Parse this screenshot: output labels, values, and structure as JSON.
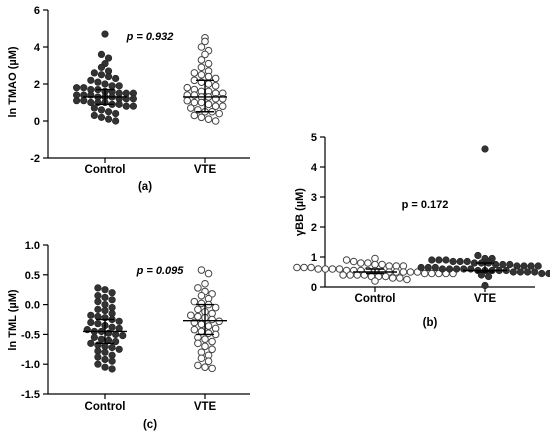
{
  "chart_data": [
    {
      "id": "a",
      "type": "scatter",
      "panel_label": "(a)",
      "ylabel": "ln TMAO (µM)",
      "annotation": "p = 0.932",
      "annotation_italic": true,
      "ylim": [
        -2,
        6
      ],
      "yticks": [
        -2,
        0,
        2,
        4,
        6
      ],
      "categories": [
        "Control",
        "VTE"
      ],
      "series": [
        {
          "category": "Control",
          "style": "filled",
          "median": 1.3,
          "iqr": [
            0.9,
            1.7
          ],
          "values": [
            4.7,
            3.6,
            3.4,
            3.1,
            2.9,
            2.7,
            2.6,
            2.5,
            2.4,
            2.3,
            2.2,
            2.1,
            2.0,
            1.9,
            1.9,
            1.8,
            1.8,
            1.7,
            1.7,
            1.6,
            1.6,
            1.5,
            1.5,
            1.5,
            1.4,
            1.4,
            1.4,
            1.3,
            1.3,
            1.3,
            1.2,
            1.2,
            1.2,
            1.1,
            1.1,
            1.0,
            1.0,
            1.0,
            0.9,
            0.9,
            0.8,
            0.8,
            0.7,
            0.6,
            0.5,
            0.4,
            0.3,
            0.2,
            0.1,
            0.0
          ]
        },
        {
          "category": "VTE",
          "style": "open",
          "median": 1.3,
          "iqr": [
            0.5,
            2.2
          ],
          "values": [
            4.5,
            4.3,
            4.0,
            3.8,
            3.6,
            3.3,
            3.1,
            2.9,
            2.7,
            2.6,
            2.5,
            2.4,
            2.3,
            2.2,
            2.1,
            2.0,
            1.9,
            1.8,
            1.7,
            1.6,
            1.6,
            1.5,
            1.5,
            1.4,
            1.4,
            1.3,
            1.3,
            1.2,
            1.2,
            1.1,
            1.0,
            1.0,
            0.9,
            0.8,
            0.8,
            0.7,
            0.6,
            0.5,
            0.5,
            0.4,
            0.3,
            0.2,
            0.1,
            0.0
          ]
        }
      ]
    },
    {
      "id": "b",
      "type": "scatter",
      "panel_label": "(b)",
      "ylabel": "γBB (µM)",
      "annotation": "p = 0.172",
      "annotation_italic": false,
      "ylim": [
        0,
        5
      ],
      "yticks": [
        0,
        1,
        2,
        3,
        4,
        5
      ],
      "categories": [
        "Control",
        "VTE"
      ],
      "series": [
        {
          "category": "Control",
          "style": "open",
          "median": 0.5,
          "iqr": [
            0.45,
            0.6
          ],
          "values": [
            0.95,
            0.9,
            0.85,
            0.8,
            0.8,
            0.75,
            0.75,
            0.7,
            0.7,
            0.7,
            0.65,
            0.65,
            0.65,
            0.6,
            0.6,
            0.6,
            0.6,
            0.55,
            0.55,
            0.55,
            0.55,
            0.55,
            0.5,
            0.5,
            0.5,
            0.5,
            0.5,
            0.5,
            0.45,
            0.45,
            0.45,
            0.45,
            0.45,
            0.4,
            0.4,
            0.4,
            0.4,
            0.35,
            0.35,
            0.35,
            0.3,
            0.3,
            0.25,
            0.2
          ]
        },
        {
          "category": "VTE",
          "style": "filled",
          "median": 0.55,
          "iqr": [
            0.5,
            0.8
          ],
          "values": [
            4.6,
            1.05,
            0.95,
            0.95,
            0.9,
            0.9,
            0.9,
            0.85,
            0.85,
            0.85,
            0.8,
            0.8,
            0.8,
            0.75,
            0.75,
            0.75,
            0.7,
            0.7,
            0.7,
            0.7,
            0.65,
            0.65,
            0.65,
            0.6,
            0.6,
            0.6,
            0.6,
            0.6,
            0.55,
            0.55,
            0.55,
            0.55,
            0.55,
            0.5,
            0.5,
            0.5,
            0.5,
            0.45,
            0.45,
            0.4,
            0.35,
            0.05
          ]
        }
      ]
    },
    {
      "id": "c",
      "type": "scatter",
      "panel_label": "(c)",
      "ylabel": "ln TML (µM)",
      "annotation": "p = 0.095",
      "annotation_italic": true,
      "ylim": [
        -1.5,
        1.0
      ],
      "yticks": [
        -1.5,
        -1.0,
        -0.5,
        0.0,
        0.5,
        1.0
      ],
      "yticklabels": [
        "-1.5",
        "-1.0",
        "-0.5",
        "0.0",
        "0.5",
        "1.0"
      ],
      "categories": [
        "Control",
        "VTE"
      ],
      "series": [
        {
          "category": "Control",
          "style": "filled",
          "median": -0.45,
          "iqr": [
            -0.65,
            -0.25
          ],
          "values": [
            0.28,
            0.25,
            0.2,
            0.15,
            0.12,
            0.08,
            0.05,
            0.0,
            -0.05,
            -0.08,
            -0.1,
            -0.15,
            -0.18,
            -0.2,
            -0.22,
            -0.25,
            -0.28,
            -0.3,
            -0.32,
            -0.35,
            -0.38,
            -0.4,
            -0.42,
            -0.45,
            -0.45,
            -0.48,
            -0.5,
            -0.52,
            -0.55,
            -0.58,
            -0.6,
            -0.62,
            -0.65,
            -0.68,
            -0.7,
            -0.72,
            -0.75,
            -0.78,
            -0.8,
            -0.85,
            -0.88,
            -0.92,
            -0.95,
            -1.0,
            -1.05,
            -1.08
          ]
        },
        {
          "category": "VTE",
          "style": "open",
          "median": -0.27,
          "iqr": [
            -0.5,
            0.0
          ],
          "values": [
            0.58,
            0.52,
            0.35,
            0.28,
            0.22,
            0.18,
            0.15,
            0.1,
            0.05,
            0.02,
            0.0,
            -0.05,
            -0.08,
            -0.12,
            -0.15,
            -0.18,
            -0.2,
            -0.22,
            -0.25,
            -0.28,
            -0.3,
            -0.33,
            -0.36,
            -0.4,
            -0.42,
            -0.45,
            -0.48,
            -0.5,
            -0.55,
            -0.58,
            -0.62,
            -0.65,
            -0.7,
            -0.75,
            -0.8,
            -0.85,
            -0.9,
            -0.95,
            -1.02,
            -1.05,
            -1.07
          ]
        }
      ]
    }
  ]
}
